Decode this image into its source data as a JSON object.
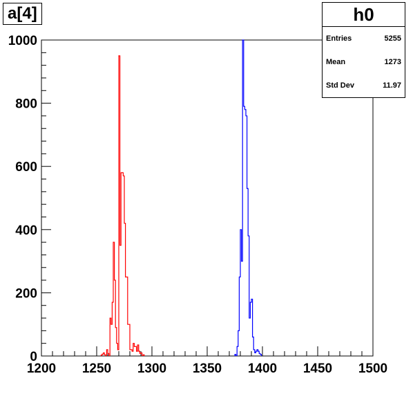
{
  "title": "a[4]",
  "stats": {
    "name": "h0",
    "rows": [
      {
        "label": "Entries",
        "value": "5255"
      },
      {
        "label": "Mean",
        "value": "1273"
      },
      {
        "label": "Std Dev",
        "value": "11.97"
      }
    ]
  },
  "chart_data": {
    "type": "bar",
    "xlim": [
      1200,
      1500
    ],
    "ylim": [
      0,
      1000
    ],
    "xticks": [
      1200,
      1250,
      1300,
      1350,
      1400,
      1450,
      1500
    ],
    "yticks": [
      0,
      200,
      400,
      600,
      800,
      1000
    ],
    "series": [
      {
        "color": "#ff0000",
        "bins": [
          [
            1254,
            3
          ],
          [
            1255,
            6
          ],
          [
            1256,
            10
          ],
          [
            1257,
            4
          ],
          [
            1259,
            20
          ],
          [
            1260,
            8
          ],
          [
            1262,
            120
          ],
          [
            1263,
            100
          ],
          [
            1264,
            170
          ],
          [
            1265,
            360
          ],
          [
            1266,
            240
          ],
          [
            1267,
            90
          ],
          [
            1268,
            40
          ],
          [
            1269,
            20
          ],
          [
            1270,
            950
          ],
          [
            1271,
            350
          ],
          [
            1272,
            580
          ],
          [
            1273,
            580
          ],
          [
            1274,
            570
          ],
          [
            1275,
            420
          ],
          [
            1276,
            250
          ],
          [
            1277,
            250
          ],
          [
            1278,
            100
          ],
          [
            1279,
            100
          ],
          [
            1280,
            20
          ],
          [
            1281,
            20
          ],
          [
            1282,
            15
          ],
          [
            1283,
            40
          ],
          [
            1284,
            30
          ],
          [
            1285,
            30
          ],
          [
            1286,
            15
          ],
          [
            1287,
            35
          ],
          [
            1288,
            15
          ],
          [
            1289,
            8
          ],
          [
            1290,
            10
          ],
          [
            1292,
            4
          ]
        ]
      },
      {
        "color": "#0000ff",
        "bins": [
          [
            1375,
            5
          ],
          [
            1377,
            30
          ],
          [
            1378,
            80
          ],
          [
            1379,
            250
          ],
          [
            1380,
            400
          ],
          [
            1381,
            300
          ],
          [
            1382,
            1000
          ],
          [
            1383,
            790
          ],
          [
            1384,
            780
          ],
          [
            1385,
            760
          ],
          [
            1386,
            530
          ],
          [
            1387,
            380
          ],
          [
            1388,
            120
          ],
          [
            1389,
            170
          ],
          [
            1390,
            180
          ],
          [
            1391,
            60
          ],
          [
            1392,
            20
          ],
          [
            1393,
            10
          ],
          [
            1394,
            15
          ],
          [
            1395,
            20
          ],
          [
            1396,
            15
          ],
          [
            1397,
            8
          ],
          [
            1398,
            5
          ]
        ]
      }
    ]
  }
}
